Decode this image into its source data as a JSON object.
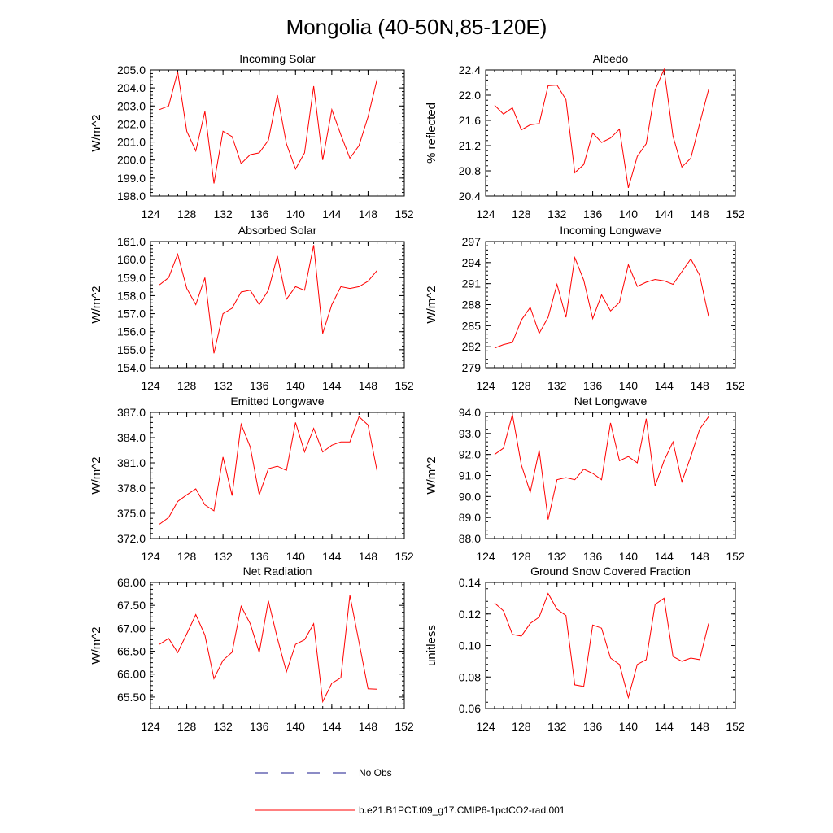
{
  "title": "Mongolia (40-50N,85-120E)",
  "legend": {
    "placement": "bottom-center",
    "items": [
      {
        "label": "No Obs",
        "color": "#1a1a8c",
        "style": "dashed"
      },
      {
        "label": "b.e21.B1PCT.f09_g17.CMIP6-1pctCO2-rad.001",
        "color": "#ff0000",
        "style": "solid"
      }
    ]
  },
  "chart_data": [
    {
      "type": "line",
      "title": "Incoming Solar",
      "ylabel": "W/m^2",
      "xlim": [
        124,
        152
      ],
      "xticks": [
        "124",
        "128",
        "132",
        "136",
        "140",
        "144",
        "148",
        "152"
      ],
      "ylim": [
        198,
        205
      ],
      "yticks": [
        "198.0",
        "199.0",
        "200.0",
        "201.0",
        "202.0",
        "203.0",
        "204.0",
        "205.0"
      ],
      "x": [
        125,
        126,
        127,
        128,
        129,
        130,
        131,
        132,
        133,
        134,
        135,
        136,
        137,
        138,
        139,
        140,
        141,
        142,
        143,
        144,
        145,
        146,
        147,
        148,
        149
      ],
      "series": [
        {
          "color": "#ff0000",
          "values": [
            202.8,
            203.0,
            204.9,
            201.6,
            200.5,
            202.7,
            198.7,
            201.6,
            201.3,
            199.8,
            200.3,
            200.4,
            201.1,
            203.6,
            200.9,
            199.5,
            200.4,
            204.1,
            200.0,
            202.8,
            201.4,
            200.1,
            200.8,
            202.4,
            204.5
          ]
        }
      ]
    },
    {
      "type": "line",
      "title": "Albedo",
      "ylabel": "% reflected",
      "xlim": [
        124,
        152
      ],
      "xticks": [
        "124",
        "128",
        "132",
        "136",
        "140",
        "144",
        "148",
        "152"
      ],
      "ylim": [
        20.4,
        22.4
      ],
      "yticks": [
        "20.4",
        "20.8",
        "21.2",
        "21.6",
        "22.0",
        "22.4"
      ],
      "x": [
        125,
        126,
        127,
        128,
        129,
        130,
        131,
        132,
        133,
        134,
        135,
        136,
        137,
        138,
        139,
        140,
        141,
        142,
        143,
        144,
        145,
        146,
        147,
        148,
        149
      ],
      "series": [
        {
          "color": "#ff0000",
          "values": [
            21.84,
            21.7,
            21.8,
            21.45,
            21.53,
            21.55,
            22.15,
            22.16,
            21.93,
            20.77,
            20.9,
            21.4,
            21.25,
            21.32,
            21.46,
            20.53,
            21.03,
            21.23,
            22.08,
            22.41,
            21.35,
            20.86,
            21.0,
            21.55,
            22.09
          ]
        }
      ]
    },
    {
      "type": "line",
      "title": "Absorbed Solar",
      "ylabel": "W/m^2",
      "xlim": [
        124,
        152
      ],
      "xticks": [
        "124",
        "128",
        "132",
        "136",
        "140",
        "144",
        "148",
        "152"
      ],
      "ylim": [
        154,
        161
      ],
      "yticks": [
        "154.0",
        "155.0",
        "156.0",
        "157.0",
        "158.0",
        "159.0",
        "160.0",
        "161.0"
      ],
      "x": [
        125,
        126,
        127,
        128,
        129,
        130,
        131,
        132,
        133,
        134,
        135,
        136,
        137,
        138,
        139,
        140,
        141,
        142,
        143,
        144,
        145,
        146,
        147,
        148,
        149
      ],
      "series": [
        {
          "color": "#ff0000",
          "values": [
            158.6,
            159.0,
            160.3,
            158.4,
            157.5,
            159.0,
            154.8,
            157.0,
            157.3,
            158.2,
            158.3,
            157.5,
            158.3,
            160.2,
            157.8,
            158.5,
            158.3,
            160.8,
            155.9,
            157.5,
            158.5,
            158.4,
            158.5,
            158.8,
            159.4
          ]
        }
      ]
    },
    {
      "type": "line",
      "title": "Incoming Longwave",
      "ylabel": "W/m^2",
      "xlim": [
        124,
        152
      ],
      "xticks": [
        "124",
        "128",
        "132",
        "136",
        "140",
        "144",
        "148",
        "152"
      ],
      "ylim": [
        279,
        297
      ],
      "yticks": [
        "279",
        "282",
        "285",
        "288",
        "291",
        "294",
        "297"
      ],
      "x": [
        125,
        126,
        127,
        128,
        129,
        130,
        131,
        132,
        133,
        134,
        135,
        136,
        137,
        138,
        139,
        140,
        141,
        142,
        143,
        144,
        145,
        146,
        147,
        148,
        149
      ],
      "series": [
        {
          "color": "#ff0000",
          "values": [
            281.8,
            282.3,
            282.6,
            285.8,
            287.6,
            283.9,
            286.2,
            290.9,
            286.2,
            294.7,
            291.5,
            286.0,
            289.4,
            287.1,
            288.3,
            293.7,
            290.6,
            291.2,
            291.6,
            291.4,
            290.9,
            292.7,
            294.5,
            292.2,
            286.3
          ]
        }
      ]
    },
    {
      "type": "line",
      "title": "Emitted Longwave",
      "ylabel": "W/m^2",
      "xlim": [
        124,
        152
      ],
      "xticks": [
        "124",
        "128",
        "132",
        "136",
        "140",
        "144",
        "148",
        "152"
      ],
      "ylim": [
        372,
        387
      ],
      "yticks": [
        "372.0",
        "375.0",
        "378.0",
        "381.0",
        "384.0",
        "387.0"
      ],
      "x": [
        125,
        126,
        127,
        128,
        129,
        130,
        131,
        132,
        133,
        134,
        135,
        136,
        137,
        138,
        139,
        140,
        141,
        142,
        143,
        144,
        145,
        146,
        147,
        148,
        149
      ],
      "series": [
        {
          "color": "#ff0000",
          "values": [
            373.7,
            374.5,
            376.4,
            377.2,
            377.9,
            376.0,
            375.3,
            381.7,
            377.1,
            385.6,
            382.9,
            377.2,
            380.3,
            380.6,
            380.1,
            385.8,
            382.3,
            385.1,
            382.3,
            383.1,
            383.5,
            383.5,
            386.5,
            385.5,
            380.0
          ]
        }
      ]
    },
    {
      "type": "line",
      "title": "Net Longwave",
      "ylabel": "W/m^2",
      "xlim": [
        124,
        152
      ],
      "xticks": [
        "124",
        "128",
        "132",
        "136",
        "140",
        "144",
        "148",
        "152"
      ],
      "ylim": [
        88,
        94
      ],
      "yticks": [
        "88.0",
        "89.0",
        "90.0",
        "91.0",
        "92.0",
        "93.0",
        "94.0"
      ],
      "x": [
        125,
        126,
        127,
        128,
        129,
        130,
        131,
        132,
        133,
        134,
        135,
        136,
        137,
        138,
        139,
        140,
        141,
        142,
        143,
        144,
        145,
        146,
        147,
        148,
        149
      ],
      "series": [
        {
          "color": "#ff0000",
          "values": [
            92.0,
            92.3,
            93.9,
            91.5,
            90.2,
            92.2,
            88.9,
            90.8,
            90.9,
            90.8,
            91.3,
            91.1,
            90.8,
            93.5,
            91.7,
            91.9,
            91.6,
            93.7,
            90.5,
            91.7,
            92.6,
            90.7,
            91.9,
            93.2,
            93.8
          ]
        }
      ]
    },
    {
      "type": "line",
      "title": "Net Radiation",
      "ylabel": "W/m^2",
      "xlim": [
        124,
        152
      ],
      "xticks": [
        "124",
        "128",
        "132",
        "136",
        "140",
        "144",
        "148",
        "152"
      ],
      "ylim": [
        65.25,
        68.0
      ],
      "yticks": [
        "65.50",
        "66.00",
        "66.50",
        "67.00",
        "67.50",
        "68.00"
      ],
      "x": [
        125,
        126,
        127,
        128,
        129,
        130,
        131,
        132,
        133,
        134,
        135,
        136,
        137,
        138,
        139,
        140,
        141,
        142,
        143,
        144,
        145,
        146,
        147,
        148,
        149
      ],
      "series": [
        {
          "color": "#ff0000",
          "values": [
            66.65,
            66.78,
            66.47,
            66.88,
            67.3,
            66.85,
            65.9,
            66.3,
            66.48,
            67.48,
            67.1,
            66.47,
            67.6,
            66.78,
            66.05,
            66.65,
            66.75,
            67.1,
            65.4,
            65.8,
            65.92,
            67.72,
            66.7,
            65.68,
            65.67
          ]
        }
      ]
    },
    {
      "type": "line",
      "title": "Ground Snow Covered Fraction",
      "ylabel": "unitless",
      "xlim": [
        124,
        152
      ],
      "xticks": [
        "124",
        "128",
        "132",
        "136",
        "140",
        "144",
        "148",
        "152"
      ],
      "ylim": [
        0.06,
        0.14
      ],
      "yticks": [
        "0.06",
        "0.08",
        "0.10",
        "0.12",
        "0.14"
      ],
      "x": [
        125,
        126,
        127,
        128,
        129,
        130,
        131,
        132,
        133,
        134,
        135,
        136,
        137,
        138,
        139,
        140,
        141,
        142,
        143,
        144,
        145,
        146,
        147,
        148,
        149
      ],
      "series": [
        {
          "color": "#ff0000",
          "values": [
            0.127,
            0.122,
            0.107,
            0.106,
            0.114,
            0.118,
            0.133,
            0.123,
            0.119,
            0.075,
            0.074,
            0.113,
            0.111,
            0.092,
            0.088,
            0.067,
            0.088,
            0.091,
            0.126,
            0.13,
            0.093,
            0.09,
            0.092,
            0.091,
            0.114
          ]
        }
      ]
    }
  ]
}
